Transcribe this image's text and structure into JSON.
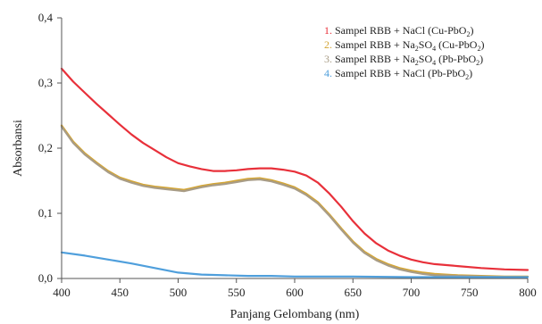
{
  "chart_data": {
    "type": "line",
    "xlabel": "Panjang Gelombang (nm)",
    "ylabel": "Absorbansi",
    "xlim": [
      400,
      800
    ],
    "ylim": [
      0.0,
      0.4
    ],
    "x_ticks": [
      400,
      450,
      500,
      550,
      600,
      650,
      700,
      750,
      800
    ],
    "x_tick_labels": [
      "400",
      "450",
      "500",
      "550",
      "600",
      "650",
      "700",
      "750",
      "800"
    ],
    "y_ticks": [
      0.0,
      0.1,
      0.2,
      0.3,
      0.4
    ],
    "y_tick_labels": [
      "0,0",
      "0,1",
      "0,2",
      "0,3",
      "0,4"
    ],
    "grid": false,
    "legend_position": "top-right",
    "series": [
      {
        "name": "Sampel RBB + NaCl (Cu-PbO2)",
        "legend_number": "1.",
        "legend_parts": [
          {
            "text": "Sampel RBB + NaCl (Cu-PbO"
          },
          {
            "text": "2",
            "sub": true
          },
          {
            "text": ")"
          }
        ],
        "color": "#e8303a",
        "x": [
          400,
          410,
          420,
          430,
          440,
          450,
          460,
          470,
          480,
          490,
          500,
          510,
          520,
          530,
          540,
          550,
          560,
          570,
          580,
          590,
          600,
          610,
          620,
          630,
          640,
          650,
          660,
          670,
          680,
          690,
          700,
          710,
          720,
          740,
          760,
          780,
          800
        ],
        "y": [
          0.322,
          0.302,
          0.285,
          0.268,
          0.252,
          0.236,
          0.221,
          0.208,
          0.197,
          0.186,
          0.177,
          0.172,
          0.168,
          0.165,
          0.165,
          0.166,
          0.168,
          0.169,
          0.169,
          0.167,
          0.164,
          0.158,
          0.147,
          0.13,
          0.11,
          0.088,
          0.069,
          0.054,
          0.043,
          0.035,
          0.029,
          0.025,
          0.022,
          0.019,
          0.016,
          0.014,
          0.013
        ]
      },
      {
        "name": "Sampel RBB + Na2SO4 (Cu-PbO2)",
        "legend_number": "2.",
        "legend_parts": [
          {
            "text": "Sampel RBB + Na"
          },
          {
            "text": "2",
            "sub": true
          },
          {
            "text": "SO"
          },
          {
            "text": "4",
            "sub": true
          },
          {
            "text": " (Cu-PbO"
          },
          {
            "text": "2",
            "sub": true
          },
          {
            "text": ")"
          }
        ],
        "color": "#d4a636",
        "x": [
          400,
          410,
          420,
          430,
          440,
          450,
          460,
          470,
          480,
          490,
          500,
          505,
          510,
          520,
          530,
          540,
          550,
          560,
          570,
          580,
          590,
          600,
          610,
          620,
          630,
          640,
          650,
          660,
          670,
          680,
          690,
          700,
          710,
          720,
          740,
          760,
          780,
          800
        ],
        "y": [
          0.235,
          0.21,
          0.192,
          0.178,
          0.165,
          0.155,
          0.149,
          0.144,
          0.141,
          0.139,
          0.137,
          0.136,
          0.138,
          0.142,
          0.145,
          0.147,
          0.15,
          0.153,
          0.154,
          0.151,
          0.146,
          0.14,
          0.13,
          0.117,
          0.098,
          0.077,
          0.057,
          0.041,
          0.03,
          0.022,
          0.016,
          0.012,
          0.009,
          0.007,
          0.005,
          0.004,
          0.003,
          0.003
        ]
      },
      {
        "name": "Sampel RBB + Na2SO4 (Pb-PbO2)",
        "legend_number": "3.",
        "legend_parts": [
          {
            "text": "Sampel RBB + Na"
          },
          {
            "text": "2",
            "sub": true
          },
          {
            "text": "SO"
          },
          {
            "text": "4",
            "sub": true
          },
          {
            "text": " (Pb-PbO"
          },
          {
            "text": "2",
            "sub": true
          },
          {
            "text": ")"
          }
        ],
        "color": "#a89c86",
        "x": [
          400,
          410,
          420,
          430,
          440,
          450,
          460,
          470,
          480,
          490,
          500,
          505,
          510,
          520,
          530,
          540,
          550,
          560,
          570,
          580,
          590,
          600,
          610,
          620,
          630,
          640,
          650,
          660,
          670,
          680,
          690,
          700,
          710,
          720,
          740,
          760,
          780,
          800
        ],
        "y": [
          0.233,
          0.208,
          0.19,
          0.176,
          0.163,
          0.153,
          0.147,
          0.142,
          0.139,
          0.137,
          0.135,
          0.134,
          0.136,
          0.14,
          0.143,
          0.145,
          0.148,
          0.151,
          0.152,
          0.149,
          0.144,
          0.138,
          0.128,
          0.115,
          0.096,
          0.075,
          0.055,
          0.039,
          0.028,
          0.02,
          0.014,
          0.01,
          0.007,
          0.005,
          0.004,
          0.003,
          0.002,
          0.002
        ]
      },
      {
        "name": "Sampel RBB + NaCl (Pb-PbO2)",
        "legend_number": "4.",
        "legend_parts": [
          {
            "text": "Sampel RBB + NaCl (Pb-PbO"
          },
          {
            "text": "2",
            "sub": true
          },
          {
            "text": ")"
          }
        ],
        "color": "#4f9fdc",
        "x": [
          400,
          420,
          440,
          460,
          480,
          500,
          520,
          540,
          560,
          580,
          600,
          650,
          700,
          750,
          800
        ],
        "y": [
          0.04,
          0.035,
          0.029,
          0.023,
          0.016,
          0.009,
          0.006,
          0.005,
          0.004,
          0.004,
          0.003,
          0.003,
          0.002,
          0.002,
          0.002
        ]
      }
    ]
  }
}
